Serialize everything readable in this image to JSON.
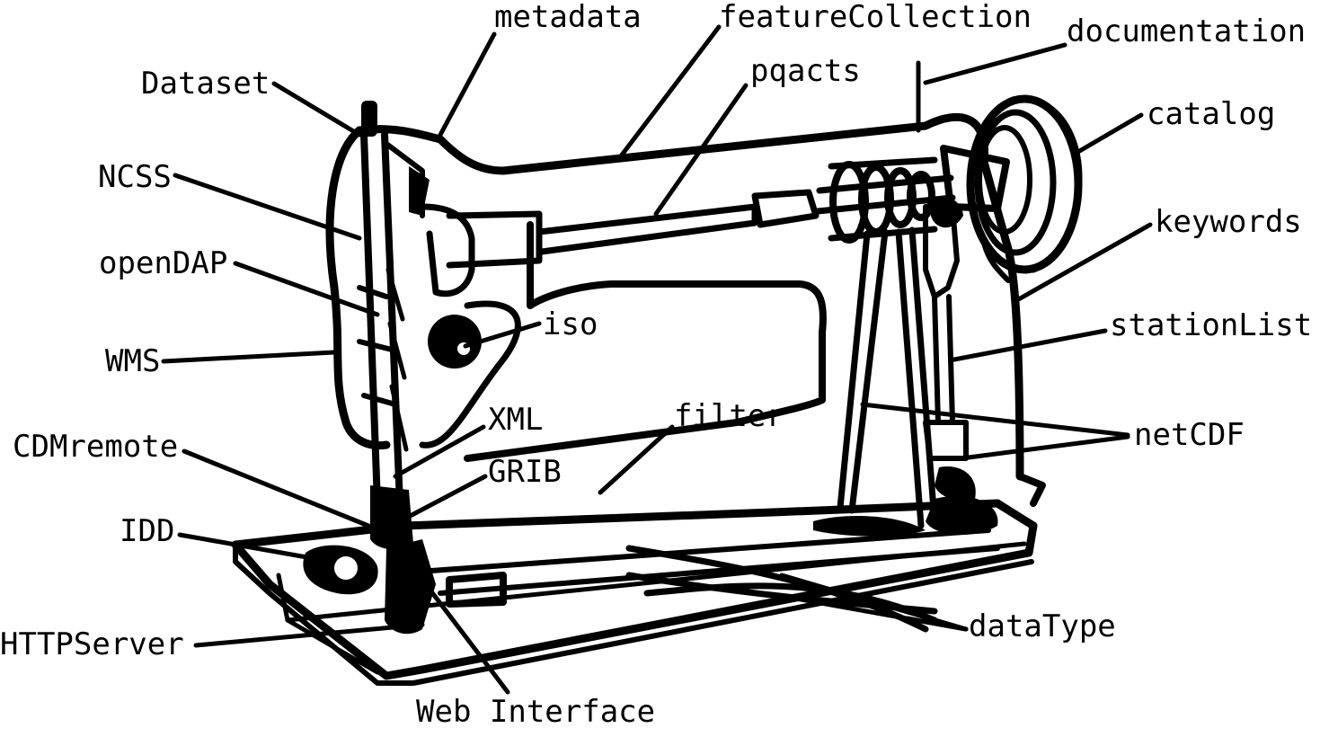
{
  "diagram": {
    "labels": {
      "metadata": "metadata",
      "featureCollection": "featureCollection",
      "documentation": "documentation",
      "dataset": "Dataset",
      "pqacts": "pqacts",
      "catalog": "catalog",
      "ncss": "NCSS",
      "keywords": "keywords",
      "opendap": "openDAP",
      "iso": "iso",
      "stationList": "stationList",
      "wms": "WMS",
      "xml": "XML",
      "filter": "filter",
      "netcdf": "netCDF",
      "cdmremote": "CDMremote",
      "grib": "GRIB",
      "idd": "IDD",
      "dataType": "dataType",
      "httpServer": "HTTPServer",
      "webInterface": "Web Interface"
    },
    "colors": {
      "ink": "#000000",
      "background": "#ffffff"
    }
  }
}
